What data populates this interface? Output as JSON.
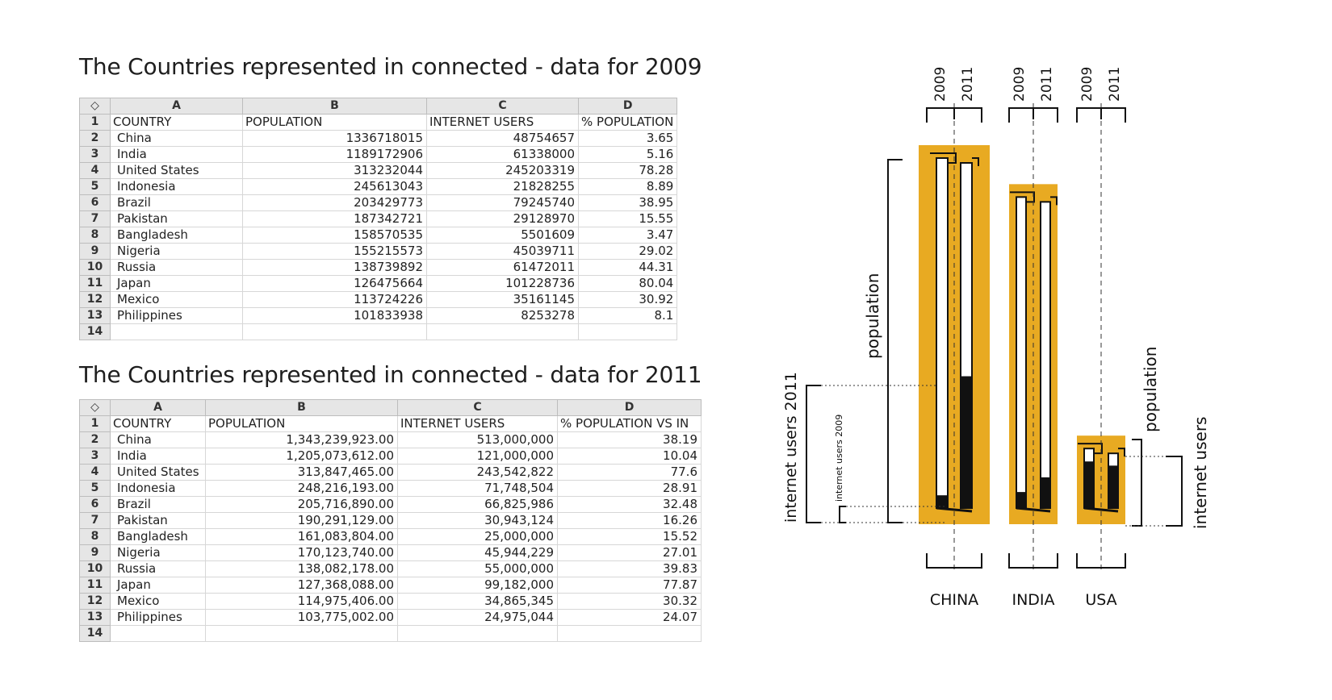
{
  "table_2009": {
    "title": "The Countries represented in connected - data for 2009",
    "corner": "◇",
    "column_letters": [
      "A",
      "B",
      "C",
      "D"
    ],
    "headers": [
      "COUNTRY",
      "POPULATION",
      "INTERNET USERS",
      "% POPULATION"
    ],
    "rows": [
      [
        "China",
        "1336718015",
        "48754657",
        "3.65"
      ],
      [
        "India",
        "1189172906",
        "61338000",
        "5.16"
      ],
      [
        "United States",
        "313232044",
        "245203319",
        "78.28"
      ],
      [
        "Indonesia",
        "245613043",
        "21828255",
        "8.89"
      ],
      [
        "Brazil",
        "203429773",
        "79245740",
        "38.95"
      ],
      [
        "Pakistan",
        "187342721",
        "29128970",
        "15.55"
      ],
      [
        "Bangladesh",
        "158570535",
        "5501609",
        "3.47"
      ],
      [
        "Nigeria",
        "155215573",
        "45039711",
        "29.02"
      ],
      [
        "Russia",
        "138739892",
        "61472011",
        "44.31"
      ],
      [
        "Japan",
        "126475664",
        "101228736",
        "80.04"
      ],
      [
        "Mexico",
        "113724226",
        "35161145",
        "30.92"
      ],
      [
        "Philippines",
        "101833938",
        "8253278",
        "8.1"
      ]
    ]
  },
  "table_2011": {
    "title": "The Countries represented in connected - data for 2011",
    "corner": "◇",
    "column_letters": [
      "A",
      "B",
      "C",
      "D"
    ],
    "headers": [
      "COUNTRY",
      "POPULATION",
      "INTERNET USERS",
      "% POPULATION VS IN"
    ],
    "rows": [
      [
        "China",
        "1,343,239,923.00",
        "513,000,000",
        "38.19"
      ],
      [
        "India",
        "1,205,073,612.00",
        "121,000,000",
        "10.04"
      ],
      [
        "United States",
        "313,847,465.00",
        "243,542,822",
        "77.6"
      ],
      [
        "Indonesia",
        "248,216,193.00",
        "71,748,504",
        "28.91"
      ],
      [
        "Brazil",
        "205,716,890.00",
        "66,825,986",
        "32.48"
      ],
      [
        "Pakistan",
        "190,291,129.00",
        "30,943,124",
        "16.26"
      ],
      [
        "Bangladesh",
        "161,083,804.00",
        "25,000,000",
        "15.52"
      ],
      [
        "Nigeria",
        "170,123,740.00",
        "45,944,229",
        "27.01"
      ],
      [
        "Russia",
        "138,082,178.00",
        "55,000,000",
        "39.83"
      ],
      [
        "Japan",
        "127,368,088.00",
        "99,182,000",
        "77.87"
      ],
      [
        "Mexico",
        "114,975,406.00",
        "34,865,345",
        "30.32"
      ],
      [
        "Philippines",
        "103,775,002.00",
        "24,975,044",
        "24.07"
      ]
    ]
  },
  "diagram": {
    "year_a": "2009",
    "year_b": "2011",
    "label_population": "population",
    "label_internet_users_2011": "internet users 2011",
    "label_internet_users_2009": "internet users 2009",
    "label_internet_users": "internet users",
    "countries": [
      {
        "name": "CHINA",
        "population_2009": 1336718015,
        "internet_users_2009": 48754657,
        "population_2011": 1343239923,
        "internet_users_2011": 513000000
      },
      {
        "name": "INDIA",
        "population_2009": 1189172906,
        "internet_users_2009": 61338000,
        "population_2011": 1205073612,
        "internet_users_2011": 121000000
      },
      {
        "name": "USA",
        "population_2009": 313232044,
        "internet_users_2009": 245203319,
        "population_2011": 313847465,
        "internet_users_2011": 243542822
      }
    ],
    "colors": {
      "orange": "#E8AA22",
      "black": "#111111"
    }
  }
}
